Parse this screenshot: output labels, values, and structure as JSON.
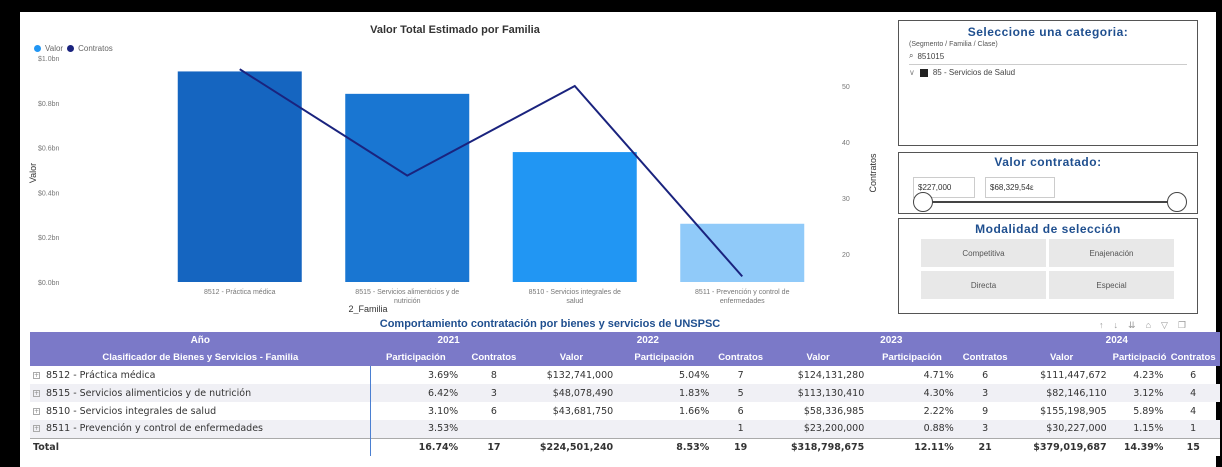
{
  "colors": {
    "bar1": "#1565c0",
    "bar2": "#1976d2",
    "bar3": "#2196f3",
    "bar4": "#90caf9",
    "line": "#1a237e",
    "header": "#7b79c8",
    "accent_text": "#1f4f8f"
  },
  "chart": {
    "title": "Valor Total Estimado por Familia",
    "legend": {
      "valor": "Valor",
      "contratos": "Contratos"
    },
    "xlabel": "2_Familia",
    "ylabel_left": "Valor",
    "ylabel_right": "Contratos",
    "y_left_ticks": [
      "$1.0bn",
      "$0.8bn",
      "$0.6bn",
      "$0.4bn",
      "$0.2bn",
      "$0.0bn"
    ],
    "y_right_ticks": [
      "50",
      "40",
      "30",
      "20"
    ],
    "categories_line1": [
      "8512 - Práctica médica",
      "8515 - Servicios alimenticios y de",
      "8510 - Servicios integrales de",
      "8511 - Prevención y control de"
    ],
    "categories_line2": [
      "",
      "nutrición",
      "salud",
      "enfermedades"
    ]
  },
  "chart_data": {
    "type": "bar",
    "title": "Valor Total Estimado por Familia",
    "xlabel": "2_Familia",
    "ylabel": "Valor",
    "y2label": "Contratos",
    "categories": [
      "8512 - Práctica médica",
      "8515 - Servicios alimenticios y de nutrición",
      "8510 - Servicios integrales de salud",
      "8511 - Prevención y control de enfermedades"
    ],
    "series": [
      {
        "name": "Valor",
        "type": "bar",
        "axis": "left",
        "values": [
          0.94,
          0.84,
          0.58,
          0.26
        ]
      },
      {
        "name": "Contratos",
        "type": "line",
        "axis": "right",
        "values": [
          53,
          34,
          50,
          16
        ]
      }
    ],
    "ylim": [
      0,
      1.0
    ],
    "y2lim": [
      15,
      55
    ],
    "legend": "top-left"
  },
  "category_panel": {
    "title": "Seleccione una categoria:",
    "subtitle": "(Segmento / Familia / Clase)",
    "search_value": "851015",
    "tree_item": "85 - Servicios de Salud"
  },
  "value_panel": {
    "title": "Valor contratado:",
    "min": "$227,000",
    "max": "$68,329,54ε"
  },
  "modality_panel": {
    "title": "Modalidad de selección",
    "options": [
      "Competitiva",
      "Enajenación",
      "Directa",
      "Especial"
    ]
  },
  "table": {
    "title": "Comportamiento contratación por bienes y servicios de UNSPSC",
    "year_label": "Año",
    "years": [
      "2021",
      "2022",
      "2023",
      "2024"
    ],
    "row_header": "Clasificador de Bienes y Servicios - Familia",
    "col_headers": [
      "Participación",
      "Contratos",
      "Valor",
      "Participación",
      "Contratos",
      "Valor",
      "Participación",
      "Contratos",
      "Valor",
      "Participación",
      "Contratos"
    ],
    "rows": [
      {
        "name": "8512 - Práctica médica",
        "cells": [
          "3.69%",
          "8",
          "$132,741,000",
          "5.04%",
          "7",
          "$124,131,280",
          "4.71%",
          "6",
          "$111,447,672",
          "4.23%",
          "6"
        ]
      },
      {
        "name": "8515 - Servicios alimenticios y de nutrición",
        "cells": [
          "6.42%",
          "3",
          "$48,078,490",
          "1.83%",
          "5",
          "$113,130,410",
          "4.30%",
          "3",
          "$82,146,110",
          "3.12%",
          "4"
        ]
      },
      {
        "name": "8510 - Servicios integrales de salud",
        "cells": [
          "3.10%",
          "6",
          "$43,681,750",
          "1.66%",
          "6",
          "$58,336,985",
          "2.22%",
          "9",
          "$155,198,905",
          "5.89%",
          "4"
        ]
      },
      {
        "name": "8511 - Prevención y control de enfermedades",
        "cells": [
          "3.53%",
          "",
          "",
          "",
          "1",
          "$23,200,000",
          "0.88%",
          "3",
          "$30,227,000",
          "1.15%",
          "1"
        ]
      }
    ],
    "total": {
      "name": "Total",
      "cells": [
        "16.74%",
        "17",
        "$224,501,240",
        "8.53%",
        "19",
        "$318,798,675",
        "12.11%",
        "21",
        "$379,019,687",
        "14.39%",
        "15"
      ]
    }
  }
}
